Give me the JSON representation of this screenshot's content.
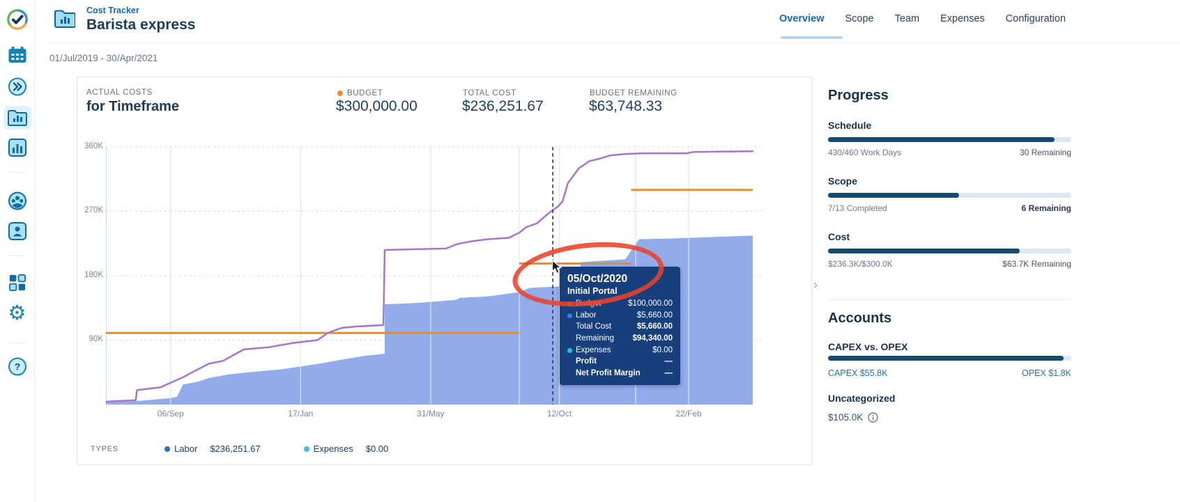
{
  "app": {
    "product": "Cost Tracker",
    "project": "Barista express",
    "date_range": "01/Jul/2019 - 30/Apr/2021"
  },
  "rail": {
    "icons": [
      "tempo-logo",
      "calendar",
      "collapse-rail",
      "cost-trackers",
      "reports",
      "teams",
      "account-person",
      "apps-grid",
      "settings",
      "help"
    ]
  },
  "tabs": [
    {
      "label": "Overview",
      "active": true
    },
    {
      "label": "Scope",
      "active": false
    },
    {
      "label": "Team",
      "active": false
    },
    {
      "label": "Expenses",
      "active": false
    },
    {
      "label": "Configuration",
      "active": false
    }
  ],
  "summary": {
    "eyebrow": "ACTUAL COSTS",
    "title": "for Timeframe",
    "metrics": [
      {
        "label": "BUDGET",
        "value": "$300,000.00",
        "dot": "#ed8c2b"
      },
      {
        "label": "TOTAL COST",
        "value": "$236,251.67",
        "dot": null
      },
      {
        "label": "BUDGET REMAINING",
        "value": "$63,748.33",
        "dot": null
      }
    ]
  },
  "chart_data": {
    "type": "area",
    "title": "Actual costs for Timeframe",
    "unit": "USD (thousands)",
    "ylim": [
      0,
      366
    ],
    "grid": true,
    "y_ticks": [
      "360K",
      "270K",
      "180K",
      "90K"
    ],
    "y_tick_values": [
      360,
      270,
      180,
      90
    ],
    "x_ticks": [
      {
        "label": "06/Sep",
        "t": 0.1
      },
      {
        "label": "17/Jan",
        "t": 0.301
      },
      {
        "label": "31/May",
        "t": 0.502
      },
      {
        "label": "12/Oct",
        "t": 0.701
      },
      {
        "label": "22/Feb",
        "t": 0.901
      }
    ],
    "extra_gridlines_t": [
      0.639,
      0.819
    ],
    "cursor_t": 0.691,
    "series": [
      {
        "name": "Labor actual cost",
        "kind": "area",
        "color": "#8da8ea",
        "points": [
          [
            0,
            3
          ],
          [
            0.05,
            5
          ],
          [
            0.1,
            9
          ],
          [
            0.11,
            11
          ],
          [
            0.119,
            28
          ],
          [
            0.143,
            32
          ],
          [
            0.159,
            37
          ],
          [
            0.19,
            42
          ],
          [
            0.22,
            45
          ],
          [
            0.27,
            49
          ],
          [
            0.3,
            53
          ],
          [
            0.33,
            57
          ],
          [
            0.36,
            62
          ],
          [
            0.4,
            68
          ],
          [
            0.431,
            71
          ],
          [
            0.431,
            140
          ],
          [
            0.48,
            142
          ],
          [
            0.54,
            146
          ],
          [
            0.547,
            149
          ],
          [
            0.59,
            151
          ],
          [
            0.639,
            157
          ],
          [
            0.655,
            163
          ],
          [
            0.7,
            165
          ],
          [
            0.731,
            166
          ],
          [
            0.734,
            199
          ],
          [
            0.77,
            201
          ],
          [
            0.803,
            203
          ],
          [
            0.824,
            231
          ],
          [
            0.87,
            232
          ],
          [
            0.935,
            234
          ],
          [
            1,
            236
          ]
        ]
      },
      {
        "name": "Planned cost",
        "kind": "line",
        "color": "#a873ca",
        "points": [
          [
            0,
            4
          ],
          [
            0.046,
            6
          ],
          [
            0.048,
            20
          ],
          [
            0.084,
            24
          ],
          [
            0.119,
            38
          ],
          [
            0.127,
            42
          ],
          [
            0.159,
            57
          ],
          [
            0.181,
            61
          ],
          [
            0.213,
            77
          ],
          [
            0.251,
            80
          ],
          [
            0.289,
            86
          ],
          [
            0.327,
            90
          ],
          [
            0.343,
            100
          ],
          [
            0.364,
            107
          ],
          [
            0.386,
            109
          ],
          [
            0.429,
            111
          ],
          [
            0.431,
            216
          ],
          [
            0.526,
            218
          ],
          [
            0.542,
            224
          ],
          [
            0.564,
            228
          ],
          [
            0.59,
            231
          ],
          [
            0.623,
            233
          ],
          [
            0.639,
            240
          ],
          [
            0.65,
            248
          ],
          [
            0.666,
            253
          ],
          [
            0.688,
            270
          ],
          [
            0.698,
            276
          ],
          [
            0.706,
            284
          ],
          [
            0.714,
            309
          ],
          [
            0.731,
            330
          ],
          [
            0.747,
            340
          ],
          [
            0.765,
            344
          ],
          [
            0.779,
            348
          ],
          [
            0.801,
            350
          ],
          [
            0.828,
            351
          ],
          [
            0.898,
            351
          ],
          [
            0.908,
            353
          ],
          [
            1,
            354
          ]
        ]
      },
      {
        "name": "Budget",
        "kind": "step",
        "color": "#ed8c2b",
        "segments": [
          {
            "t0": 0,
            "t1": 0.639,
            "v": 100
          },
          {
            "t0": 0.639,
            "t1": 0.812,
            "v": 197
          },
          {
            "t0": 0.812,
            "t1": 1,
            "v": 300
          }
        ]
      }
    ]
  },
  "tooltip": {
    "date": "05/Oct/2020",
    "milestone": "Initial Portal",
    "rows": [
      {
        "label": "Budget",
        "value": "$100,000.00",
        "dot": "#f0953e"
      },
      {
        "label": "Labor",
        "value": "$5,660.00",
        "dot": "#2f80ed"
      },
      {
        "label": "Total Cost",
        "value": "$5,660.00",
        "dot": null
      },
      {
        "label": "Remaining",
        "value": "$94,340.00",
        "dot": null
      },
      {
        "label": "Expenses",
        "value": "$0.00",
        "dot": "#18c4e8"
      },
      {
        "label": "Profit",
        "value": "—",
        "dot": null
      },
      {
        "label": "Net Profit Margin",
        "value": "—",
        "dot": null
      }
    ]
  },
  "legend": {
    "caption": "TYPES",
    "items": [
      {
        "name": "Labor",
        "value": "$236,251.67",
        "color": "#2e6fc2"
      },
      {
        "name": "Expenses",
        "value": "$0.00",
        "color": "#35c0e4"
      }
    ]
  },
  "panel": {
    "progress_title": "Progress",
    "sections": [
      {
        "title": "Schedule",
        "left": "430/460 Work Days",
        "right": "30 Remaining",
        "fraction": 0.93
      },
      {
        "title": "Scope",
        "left": "7/13 Completed",
        "right": "6 Remaining",
        "fraction": 0.538
      },
      {
        "title": "Cost",
        "left": "$236.3K/$300.0K",
        "right": "$63.7K Remaining",
        "fraction": 0.788
      }
    ],
    "accounts_title": "Accounts",
    "capex": {
      "title": "CAPEX vs. OPEX",
      "left": "CAPEX $55.8K",
      "right": "OPEX $1.8K",
      "fraction": 0.969
    },
    "uncategorized": {
      "title": "Uncategorized",
      "value": "$105.0K"
    }
  }
}
